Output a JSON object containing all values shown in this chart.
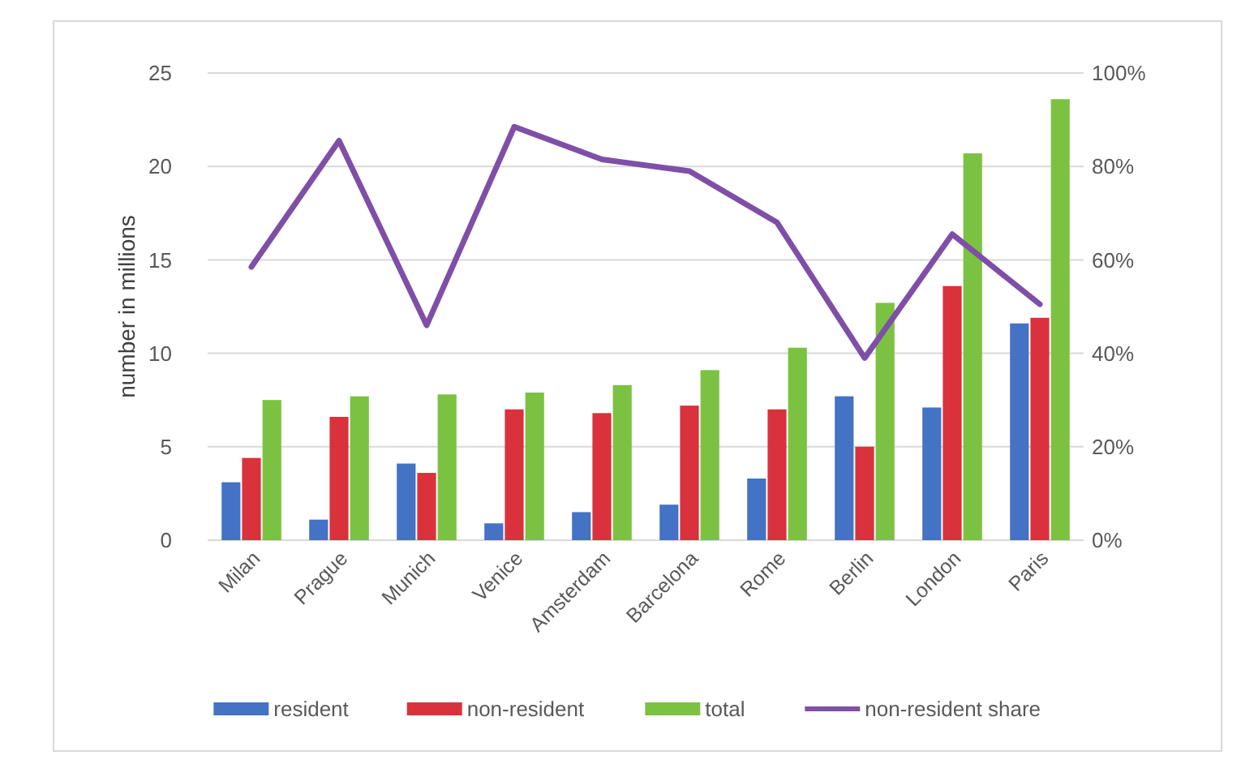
{
  "chart_data": {
    "type": "bar",
    "ylabel": "number in millions",
    "categories": [
      "Milan",
      "Prague",
      "Munich",
      "Venice",
      "Amsterdam",
      "Barcelona",
      "Rome",
      "Berlin",
      "London",
      "Paris"
    ],
    "series": [
      {
        "name": "resident",
        "color": "#4472c4",
        "values": [
          3.1,
          1.1,
          4.1,
          0.9,
          1.5,
          1.9,
          3.3,
          7.7,
          7.1,
          11.6
        ]
      },
      {
        "name": "non-resident",
        "color": "#d9323c",
        "values": [
          4.4,
          6.6,
          3.6,
          7.0,
          6.8,
          7.2,
          7.0,
          5.0,
          13.6,
          11.9
        ]
      },
      {
        "name": "total",
        "color": "#7cc242",
        "values": [
          7.5,
          7.7,
          7.8,
          7.9,
          8.3,
          9.1,
          10.3,
          12.7,
          20.7,
          23.6
        ]
      },
      {
        "name": "non-resident share",
        "color": "#7f4fa8",
        "type": "line",
        "axis": "y2",
        "values": [
          58.5,
          85.5,
          46,
          88.5,
          81.5,
          79,
          68,
          39,
          65.5,
          50.5
        ]
      }
    ],
    "ylim": [
      0,
      25
    ],
    "yticks": [
      0,
      5,
      10,
      15,
      20,
      25
    ],
    "y2lim": [
      0,
      100
    ],
    "y2ticks": [
      {
        "value": 0,
        "label": "0%"
      },
      {
        "value": 20,
        "label": "20%"
      },
      {
        "value": 40,
        "label": "40%"
      },
      {
        "value": 60,
        "label": "60%"
      },
      {
        "value": 80,
        "label": "80%"
      },
      {
        "value": 100,
        "label": "100%"
      }
    ],
    "grid": "y",
    "legend": "bottom",
    "marker": "none",
    "line_style": "solid"
  }
}
